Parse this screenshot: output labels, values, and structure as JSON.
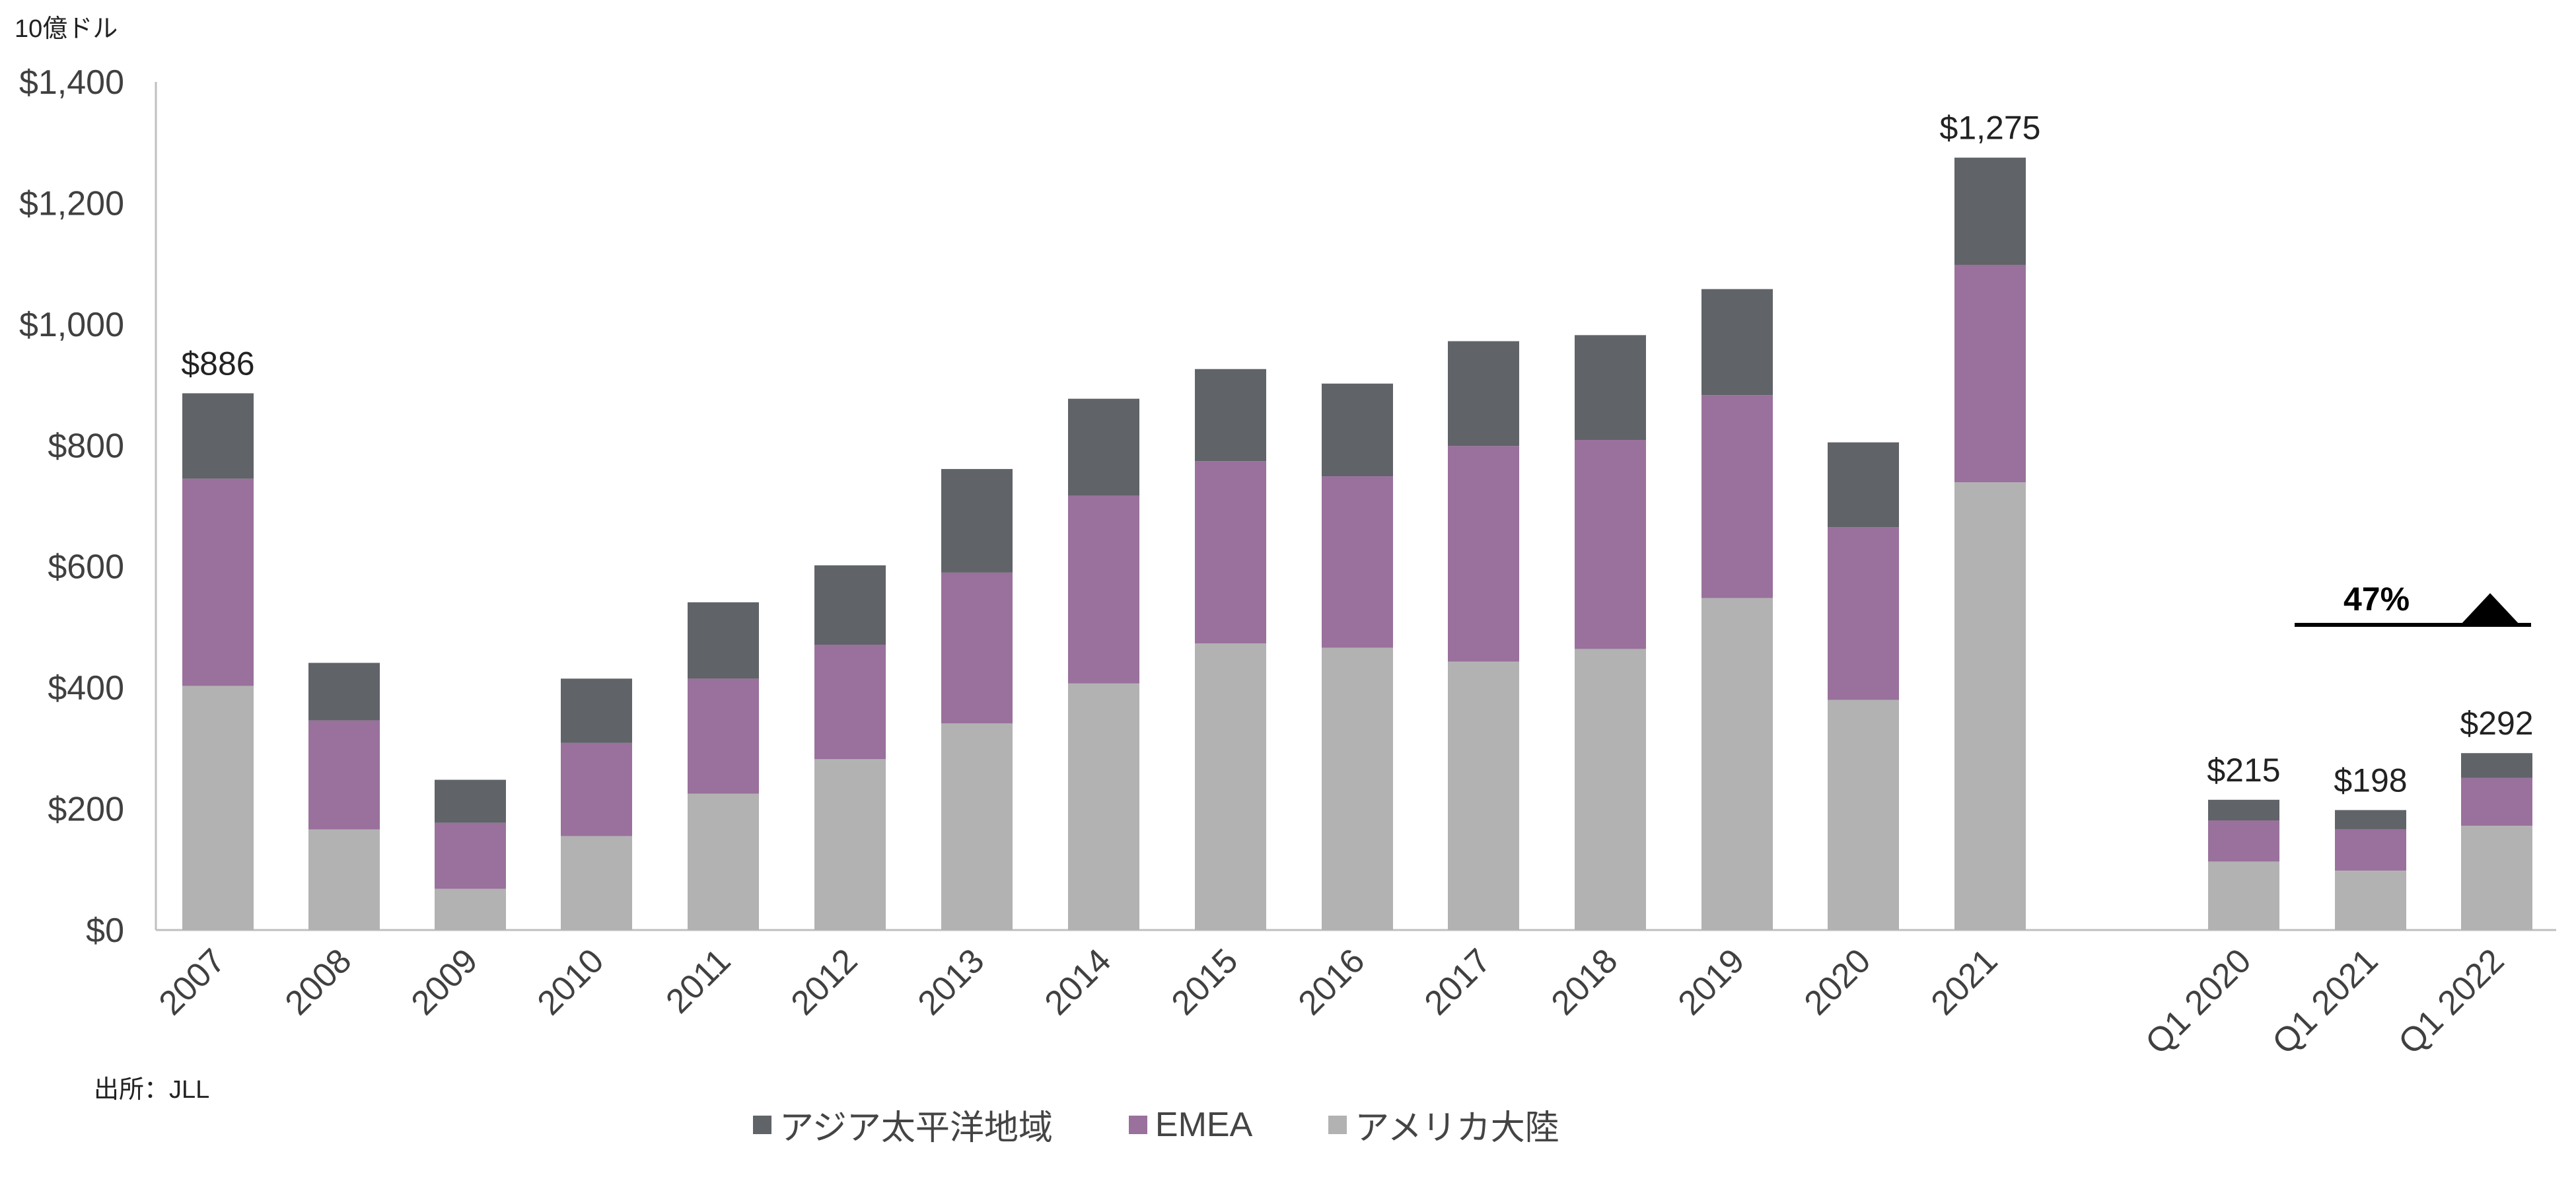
{
  "unit_label": "10億ドル",
  "source_text": "出所：JLL",
  "colors": {
    "asia_pacific": "#606368",
    "emea": "#99719c",
    "americas": "#b2b2b3",
    "axis": "#bfbfbf",
    "text": "#404040"
  },
  "chart_data": {
    "type": "bar",
    "stacked": true,
    "title": "",
    "xlabel": "",
    "ylabel": "10億ドル",
    "ylim": [
      0,
      1400
    ],
    "yticks": [
      "$0",
      "$200",
      "$400",
      "$600",
      "$800",
      "$1,000",
      "$1,200",
      "$1,400"
    ],
    "ytick_values": [
      0,
      200,
      400,
      600,
      800,
      1000,
      1200,
      1400
    ],
    "categories": [
      "2007",
      "2008",
      "2009",
      "2010",
      "2011",
      "2012",
      "2013",
      "2014",
      "2015",
      "2016",
      "2017",
      "2018",
      "2019",
      "2020",
      "2021",
      "Q1 2020",
      "Q1 2021",
      "Q1 2022"
    ],
    "series": [
      {
        "name": "アメリカ大陸",
        "color": "#b2b2b3",
        "values": [
          403,
          166,
          68,
          155,
          225,
          282,
          341,
          407,
          473,
          466,
          443,
          464,
          548,
          380,
          739,
          113,
          98,
          172
        ]
      },
      {
        "name": "EMEA",
        "color": "#99719c",
        "values": [
          342,
          180,
          109,
          154,
          190,
          189,
          249,
          310,
          301,
          283,
          356,
          345,
          335,
          285,
          359,
          68,
          68,
          79
        ]
      },
      {
        "name": "アジア太平洋地域",
        "color": "#606368",
        "values": [
          141,
          95,
          71,
          106,
          126,
          131,
          171,
          160,
          152,
          153,
          173,
          173,
          175,
          140,
          177,
          34,
          32,
          41
        ]
      }
    ],
    "data_labels": [
      {
        "category": "2007",
        "text": "$886"
      },
      {
        "category": "2021",
        "text": "$1,275"
      },
      {
        "category": "Q1 2020",
        "text": "$215"
      },
      {
        "category": "Q1 2021",
        "text": "$198"
      },
      {
        "category": "Q1 2022",
        "text": "$292"
      }
    ],
    "annotation": {
      "text": "47%",
      "direction": "up",
      "from": "Q1 2021",
      "to": "Q1 2022"
    },
    "legend": {
      "position": "bottom",
      "items": [
        {
          "name": "アジア太平洋地域",
          "color": "#606368"
        },
        {
          "name": "EMEA",
          "color": "#99719c"
        },
        {
          "name": "アメリカ大陸",
          "color": "#b2b2b3"
        }
      ]
    }
  }
}
